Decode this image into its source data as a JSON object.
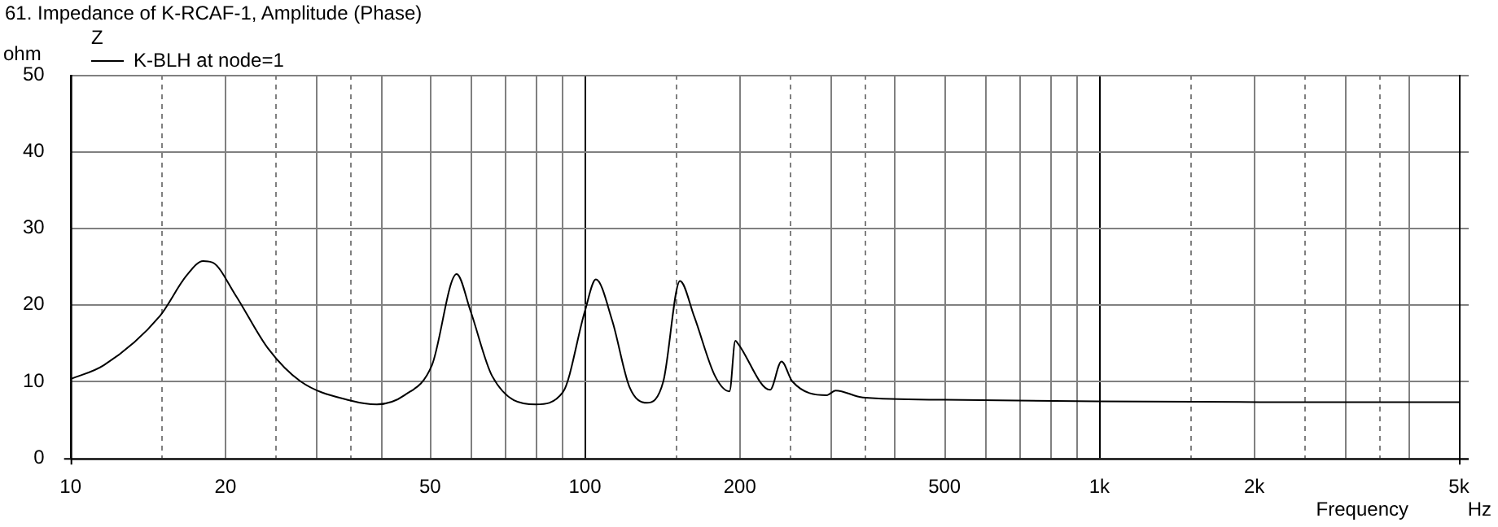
{
  "chart_data": {
    "type": "line",
    "title": "61. Impedance of K-RCAF-1, Amplitude (Phase)",
    "xlabel": "Frequency",
    "ylabel": "ohm",
    "legend_title": "Z",
    "annotations": [
      "Hz"
    ],
    "x": [
      10,
      11.6,
      14.9,
      16.8,
      18.1,
      18.9,
      20.9,
      24.2,
      28,
      35,
      39.4,
      44.6,
      50.4,
      56.3,
      59.9,
      66,
      80.2,
      90.6,
      100,
      105,
      113,
      122,
      132,
      142,
      153,
      163,
      179,
      191,
      196,
      198,
      229,
      241,
      253,
      295,
      307,
      347,
      500,
      990,
      2050,
      5000
    ],
    "series": [
      {
        "name": "K-BLH at node=1",
        "color": "#000000",
        "values": [
          10.3,
          12.1,
          18.5,
          23.8,
          25.7,
          25.5,
          21.3,
          14.3,
          10,
          7.5,
          7.0,
          8.2,
          12.1,
          24.0,
          19.2,
          10.7,
          7.0,
          8.6,
          19.2,
          23.3,
          17.9,
          9.3,
          7.2,
          10.0,
          23.1,
          18.5,
          10.7,
          8.7,
          15.3,
          15.0,
          8.9,
          12.6,
          10.0,
          8.2,
          8.8,
          7.9,
          7.6,
          7.4,
          7.3,
          7.3
        ]
      }
    ],
    "xlim": [
      10,
      5000
    ],
    "ylim": [
      0,
      50
    ],
    "xticks": [
      10,
      {
        "value": 15,
        "label": null
      },
      20,
      {
        "value": 25,
        "label": null
      },
      {
        "value": 30,
        "label": null
      },
      {
        "value": 35,
        "label": null
      },
      {
        "value": 40,
        "label": null
      },
      50,
      {
        "value": 60,
        "label": null
      },
      {
        "value": 70,
        "label": null
      },
      {
        "value": 80,
        "label": null
      },
      {
        "value": 90,
        "label": null
      },
      100,
      {
        "value": 150,
        "label": null
      },
      200,
      {
        "value": 250,
        "label": null
      },
      {
        "value": 300,
        "label": null
      },
      {
        "value": 350,
        "label": null
      },
      {
        "value": 400,
        "label": null
      },
      500,
      {
        "value": 600,
        "label": null
      },
      {
        "value": 700,
        "label": null
      },
      {
        "value": 800,
        "label": null
      },
      {
        "value": 900,
        "label": null
      },
      {
        "value": 1000,
        "label": "1k"
      },
      {
        "value": 1500,
        "label": null
      },
      {
        "value": 2000,
        "label": "2k"
      },
      {
        "value": 2500,
        "label": null
      },
      {
        "value": 3000,
        "label": null
      },
      {
        "value": 3500,
        "label": null
      },
      {
        "value": 4000,
        "label": null
      },
      {
        "value": 5000,
        "label": "5k"
      }
    ],
    "yticks": [
      0,
      10,
      20,
      30,
      40,
      50
    ],
    "log": "x",
    "grid": true,
    "legend": "top left"
  }
}
